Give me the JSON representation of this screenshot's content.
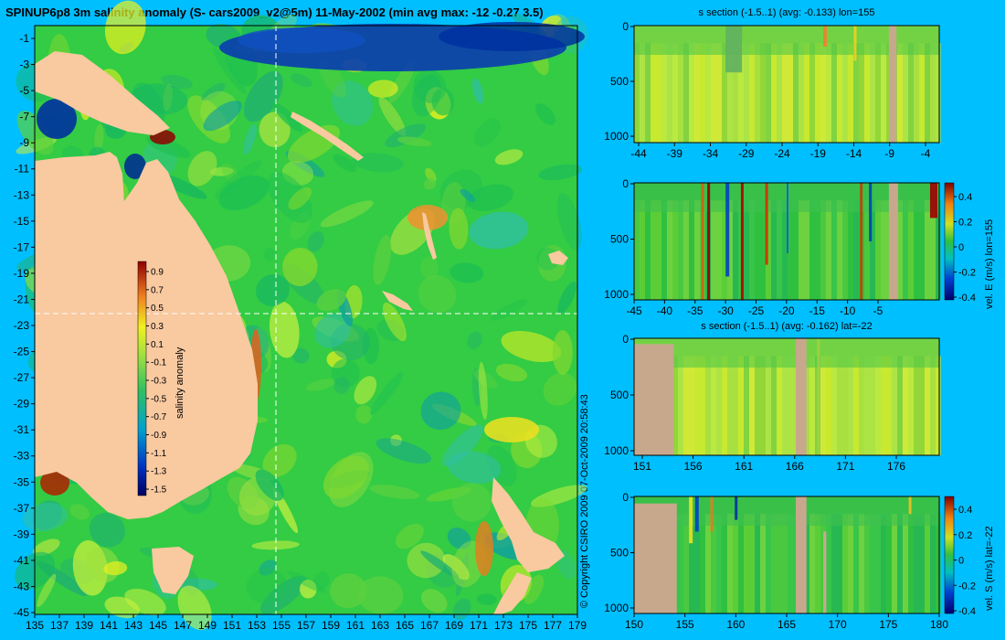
{
  "main_title": "SPINUP6p8 3m salinity anomaly (S- cars2009_v2@5m) 11-May-2002 (min avg max: -12 -0.27 3.5)",
  "copyright": "© Copyright CSIRO 2009   07-Oct-2009 20:58:43",
  "colors": {
    "page_background": "#00bfff",
    "land": "#f9c9a0",
    "section_land": "#c8a88c",
    "ocean_base": "#33cc44",
    "crosshair": "#ffffff"
  },
  "chart_data": [
    {
      "id": "map",
      "type": "heatmap",
      "title": "",
      "x_ticks": [
        "135",
        "137",
        "139",
        "141",
        "143",
        "145",
        "147",
        "149",
        "151",
        "153",
        "155",
        "157",
        "159",
        "161",
        "163",
        "165",
        "167",
        "169",
        "171",
        "173",
        "175",
        "177",
        "179"
      ],
      "y_ticks": [
        "-1",
        "-3",
        "-5",
        "-7",
        "-9",
        "-11",
        "-13",
        "-15",
        "-17",
        "-19",
        "-21",
        "-23",
        "-25",
        "-27",
        "-29",
        "-31",
        "-33",
        "-35",
        "-37",
        "-39",
        "-41",
        "-43",
        "-45"
      ],
      "xlim": [
        135,
        180
      ],
      "ylim": [
        -45,
        0
      ],
      "crosshair": {
        "lon": 155,
        "lat": -22
      },
      "colorbar": {
        "label": "salinity anomaly",
        "ticks": [
          "0.9",
          "0.7",
          "0.5",
          "0.3",
          "0.1",
          "-0.1",
          "-0.3",
          "-0.5",
          "-0.7",
          "-0.9",
          "-1.1",
          "-1.3",
          "-1.5"
        ],
        "range": [
          -1.6,
          1.0
        ]
      }
    },
    {
      "id": "s-section-lon",
      "type": "heatmap",
      "title": "s section (-1.5..1) (avg: -0.133) lon=155",
      "x_ticks": [
        "-44",
        "-39",
        "-34",
        "-29",
        "-24",
        "-19",
        "-14",
        "-9",
        "-4"
      ],
      "y_ticks": [
        "0",
        "500",
        "1000"
      ],
      "xlim": [
        -45,
        0
      ],
      "ylim": [
        1050,
        0
      ]
    },
    {
      "id": "vel-e-section",
      "type": "heatmap",
      "title": "",
      "x_ticks": [
        "-45",
        "-40",
        "-35",
        "-30",
        "-25",
        "-20",
        "-15",
        "-10",
        "-5"
      ],
      "y_ticks": [
        "0",
        "500",
        "1000"
      ],
      "xlim": [
        -45,
        0
      ],
      "ylim": [
        1050,
        0
      ],
      "colorbar": {
        "label": "vel. E (m/s) lon=155",
        "ticks": [
          "0.4",
          "0.2",
          "0",
          "-0.2",
          "-0.4"
        ],
        "range": [
          -0.4,
          0.4
        ]
      }
    },
    {
      "id": "s-section-lat",
      "type": "heatmap",
      "title": "s section (-1.5..1) (avg: -0.162) lat=-22",
      "x_ticks": [
        "151",
        "156",
        "161",
        "166",
        "171",
        "176"
      ],
      "y_ticks": [
        "0",
        "500",
        "1000"
      ],
      "xlim": [
        150,
        180
      ],
      "ylim": [
        1050,
        0
      ]
    },
    {
      "id": "vel-s-section",
      "type": "heatmap",
      "title": "",
      "x_ticks": [
        "150",
        "155",
        "160",
        "165",
        "170",
        "175",
        "180"
      ],
      "y_ticks": [
        "0",
        "500",
        "1000"
      ],
      "xlim": [
        150,
        180
      ],
      "ylim": [
        1050,
        0
      ],
      "colorbar": {
        "label": "vel. S (m/s) lat=-22",
        "ticks": [
          "0.4",
          "0.2",
          "0",
          "-0.2",
          "-0.4"
        ],
        "range": [
          -0.4,
          0.4
        ]
      }
    }
  ]
}
